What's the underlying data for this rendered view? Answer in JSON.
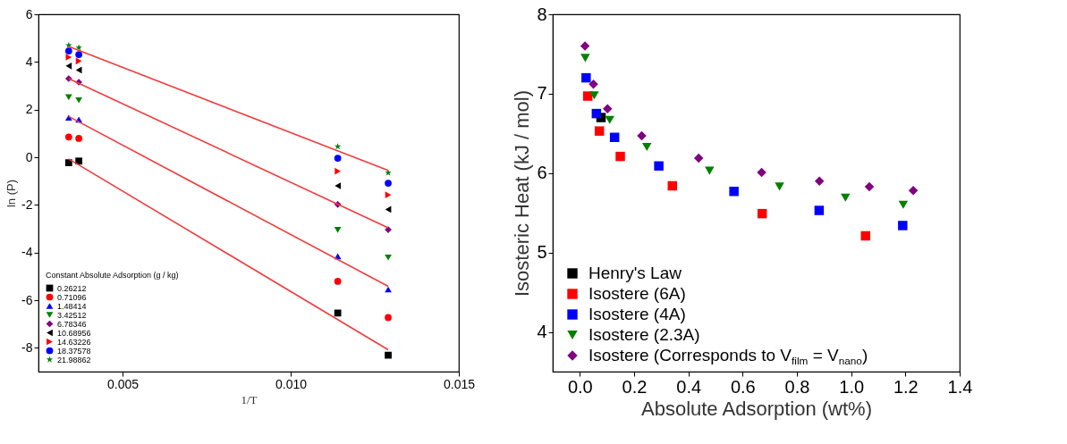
{
  "chart_data": [
    {
      "type": "scatter",
      "xlabel": "1/T",
      "ylabel": "ln (P)",
      "legend_title": "Constant Absolute Adsorption (g / kg)",
      "legend": "bottom left",
      "grid": false,
      "xlim": [
        0.0025,
        0.015
      ],
      "xticks": [
        {
          "value": 0.005,
          "label": "0.005"
        },
        {
          "value": 0.01,
          "label": "0.010"
        },
        {
          "value": 0.015,
          "label": "0.015"
        }
      ],
      "ylim": [
        -9,
        6
      ],
      "yticks": [
        -8,
        -6,
        -4,
        -2,
        0,
        2,
        4,
        6
      ],
      "x": [
        0.0034,
        0.0037,
        0.0114,
        0.0129
      ],
      "series": [
        {
          "name": "0.26212",
          "color": "#000000",
          "marker": "square",
          "values": [
            -0.23,
            -0.16,
            -6.54,
            -8.31
          ]
        },
        {
          "name": "0.71096",
          "color": "#ff0000",
          "marker": "circle",
          "values": [
            0.85,
            0.79,
            -5.21,
            -6.73
          ]
        },
        {
          "name": "1.48414",
          "color": "#0000ff",
          "marker": "triangle-up",
          "values": [
            1.66,
            1.58,
            -4.16,
            -5.55
          ]
        },
        {
          "name": "3.42512",
          "color": "#008000",
          "marker": "triangle-down",
          "values": [
            2.52,
            2.39,
            -3.05,
            -4.21
          ]
        },
        {
          "name": "6.78346",
          "color": "#800080",
          "marker": "diamond",
          "values": [
            3.3,
            3.15,
            -1.98,
            -3.04
          ]
        },
        {
          "name": "10.68956",
          "color": "#000000",
          "marker": "triangle-left",
          "values": [
            3.83,
            3.66,
            -1.2,
            -2.19
          ]
        },
        {
          "name": "14.63226",
          "color": "#ff0000",
          "marker": "triangle-right",
          "values": [
            4.2,
            4.04,
            -0.59,
            -1.58
          ]
        },
        {
          "name": "18.37578",
          "color": "#0000ff",
          "marker": "circle",
          "values": [
            4.46,
            4.31,
            -0.04,
            -1.09
          ]
        },
        {
          "name": "21.98862",
          "color": "#008000",
          "marker": "star",
          "values": [
            4.7,
            4.6,
            0.45,
            -0.65
          ]
        },
        {
          "type": "line",
          "color": "#f03c3c",
          "line_style": "solid",
          "x": [
            0.0034,
            0.0129
          ],
          "values": [
            4.65,
            -0.55
          ]
        },
        {
          "type": "line",
          "color": "#f03c3c",
          "line_style": "solid",
          "x": [
            0.0034,
            0.0129
          ],
          "values": [
            3.3,
            -2.96
          ]
        },
        {
          "type": "line",
          "color": "#f03c3c",
          "line_style": "solid",
          "x": [
            0.0034,
            0.0129
          ],
          "values": [
            1.71,
            -5.42
          ]
        },
        {
          "type": "line",
          "color": "#f03c3c",
          "line_style": "solid",
          "x": [
            0.0034,
            0.0129
          ],
          "values": [
            -0.07,
            -8.08
          ]
        }
      ]
    },
    {
      "type": "scatter",
      "xlabel": "Absolute Adsorption (wt%)",
      "ylabel": "Isosteric Heat (kJ / mol)",
      "legend": "bottom left",
      "grid": false,
      "xlim": [
        -0.1,
        1.4
      ],
      "xticks": [
        {
          "value": 0,
          "label": "0.0"
        },
        {
          "value": 0.2,
          "label": "0.2"
        },
        {
          "value": 0.4,
          "label": "0.4"
        },
        {
          "value": 0.6,
          "label": "0.6"
        },
        {
          "value": 0.8,
          "label": "0.8"
        },
        {
          "value": 1,
          "label": "1.0"
        },
        {
          "value": 1.2,
          "label": "1.2"
        },
        {
          "value": 1.4,
          "label": "1.4"
        }
      ],
      "ylim": [
        3.5,
        8
      ],
      "yticks": [
        4,
        5,
        6,
        7,
        8
      ],
      "series": [
        {
          "name": "Henry's Law",
          "color": "#000000",
          "marker": "square",
          "x": [
            0.078
          ],
          "values": [
            6.7
          ]
        },
        {
          "name": "Isostere (6A)",
          "color": "#ff0000",
          "marker": "square",
          "x": [
            0.029,
            0.072,
            0.149,
            0.341,
            0.672,
            1.053
          ],
          "values": [
            6.97,
            6.53,
            6.21,
            5.84,
            5.49,
            5.21
          ]
        },
        {
          "name": "Isostere (4A)",
          "color": "#0000ff",
          "marker": "square",
          "x": [
            0.023,
            0.061,
            0.128,
            0.291,
            0.568,
            0.882,
            1.19
          ],
          "values": [
            7.2,
            6.75,
            6.45,
            6.09,
            5.77,
            5.53,
            5.34
          ]
        },
        {
          "name": "Isostere (2.3A)",
          "color": "#008000",
          "marker": "triangle-down",
          "x": [
            0.02,
            0.053,
            0.11,
            0.247,
            0.478,
            0.736,
            0.979,
            1.192
          ],
          "values": [
            7.45,
            6.98,
            6.67,
            6.33,
            6.03,
            5.83,
            5.69,
            5.6
          ]
        },
        {
          "name": "Isostere (Corresponds to V$_{film}$ = V$_{nano}$)",
          "color": "#800080",
          "marker": "diamond",
          "x": [
            0.019,
            0.05,
            0.102,
            0.228,
            0.438,
            0.67,
            0.883,
            1.067,
            1.229
          ],
          "values": [
            7.6,
            7.12,
            6.81,
            6.47,
            6.19,
            6.01,
            5.9,
            5.83,
            5.78
          ]
        }
      ]
    }
  ]
}
